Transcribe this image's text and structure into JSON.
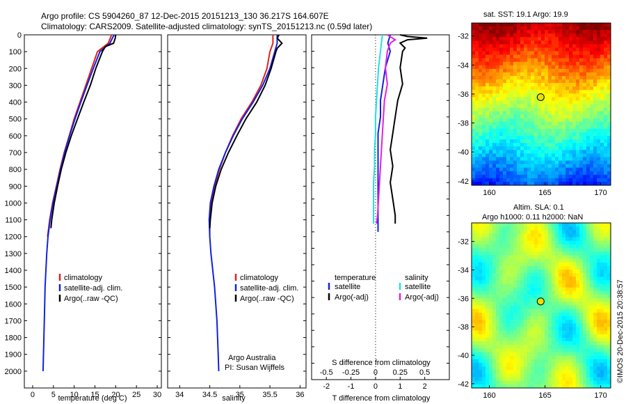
{
  "header": {
    "line1": "Argo profile: CS 5904260_87 12-Dec-2015 20151213_130 36.217S 164.607E",
    "line2": "Climatology: CARS2009. Satellite-adjusted climatology: synTS_20151213.nc (0.59d later)"
  },
  "side_stamp": "©IMOS 20-Dec-2015 20:38:57",
  "colors": {
    "climatology": "#e02020",
    "satellite": "#1020e0",
    "argo": "#000000",
    "sal_sat": "#20e0e0",
    "sal_argo": "#e020e0"
  },
  "chart_data": [
    {
      "type": "line",
      "xlabel": "temperature (deg C)",
      "ylabel": "",
      "xlim": [
        -2,
        31
      ],
      "ylim": [
        2100,
        0
      ],
      "xticks": [
        0,
        5,
        10,
        15,
        20,
        25,
        30
      ],
      "yticks": [
        0,
        100,
        200,
        300,
        400,
        500,
        600,
        700,
        800,
        900,
        1000,
        1100,
        1200,
        1300,
        1400,
        1500,
        1600,
        1700,
        1800,
        1900,
        2000
      ],
      "legend": {
        "position": "lower-center",
        "entries": [
          "climatology",
          "satellite-adj. clim.",
          "Argo(..raw -QC)"
        ]
      },
      "series": [
        {
          "name": "climatology",
          "color": "#e02020",
          "depth": [
            0,
            50,
            100,
            200,
            300,
            400,
            500,
            600,
            700,
            800,
            900,
            1000,
            1100,
            1200
          ],
          "values": [
            19.0,
            18.2,
            15.6,
            14.2,
            12.8,
            11.4,
            10.0,
            8.8,
            7.6,
            6.6,
            5.7,
            4.8,
            4.1,
            3.6
          ]
        },
        {
          "name": "satellite-adj. clim.",
          "color": "#1020e0",
          "depth": [
            0,
            50,
            100,
            200,
            300,
            400,
            500,
            600,
            700,
            800,
            900,
            1000,
            1100,
            1200,
            1300,
            1400,
            1500,
            1600,
            1700,
            1800,
            1900,
            2000
          ],
          "values": [
            19.6,
            18.6,
            16.2,
            14.6,
            13.1,
            11.6,
            10.2,
            8.9,
            7.7,
            6.7,
            5.8,
            4.9,
            4.2,
            3.7,
            3.4,
            3.2,
            3.0,
            2.9,
            2.8,
            2.7,
            2.6,
            2.5
          ]
        },
        {
          "name": "Argo(..raw -QC)",
          "color": "#000000",
          "depth": [
            0,
            20,
            50,
            70,
            100,
            200,
            300,
            400,
            500,
            600,
            700,
            800,
            900,
            1000,
            1100,
            1150
          ],
          "values": [
            20.0,
            19.9,
            19.5,
            17.5,
            16.8,
            15.2,
            13.9,
            12.3,
            10.8,
            9.3,
            8.0,
            6.9,
            6.0,
            5.2,
            4.6,
            4.4
          ]
        }
      ]
    },
    {
      "type": "line",
      "xlabel": "salinity",
      "ylabel": "",
      "xlim": [
        33.8,
        36.1
      ],
      "ylim": [
        2100,
        0
      ],
      "xticks": [
        34,
        34.5,
        35,
        35.5,
        36
      ],
      "legend": {
        "position": "lower-center",
        "entries": [
          "climatology",
          "satellite-adj. clim.",
          "Argo(..raw -QC)"
        ]
      },
      "annotation": [
        "Argo Australia",
        "PI: Susan Wijffels"
      ],
      "series": [
        {
          "name": "climatology",
          "color": "#e02020",
          "depth": [
            0,
            50,
            100,
            200,
            300,
            400,
            500,
            600,
            700,
            800,
            900,
            1000,
            1100,
            1200
          ],
          "values": [
            35.55,
            35.55,
            35.5,
            35.45,
            35.35,
            35.2,
            35.02,
            34.88,
            34.76,
            34.66,
            34.58,
            34.52,
            34.5,
            34.5
          ]
        },
        {
          "name": "satellite-adj. clim.",
          "color": "#1020e0",
          "depth": [
            0,
            50,
            100,
            200,
            300,
            400,
            500,
            600,
            700,
            800,
            900,
            1000,
            1100,
            1200,
            1300,
            1400,
            1500,
            1600,
            1700,
            1800,
            1900,
            2000
          ],
          "values": [
            35.62,
            35.62,
            35.58,
            35.5,
            35.38,
            35.22,
            35.04,
            34.89,
            34.76,
            34.65,
            34.57,
            34.51,
            34.49,
            34.5,
            34.52,
            34.55,
            34.58,
            34.6,
            34.62,
            34.63,
            34.64,
            34.65
          ]
        },
        {
          "name": "Argo(..raw -QC)",
          "color": "#000000",
          "depth": [
            0,
            20,
            50,
            80,
            100,
            200,
            300,
            400,
            500,
            600,
            700,
            800,
            900,
            1000,
            1100,
            1150
          ],
          "values": [
            35.65,
            35.62,
            35.7,
            35.62,
            35.6,
            35.52,
            35.42,
            35.28,
            35.1,
            34.95,
            34.81,
            34.69,
            34.6,
            34.54,
            34.51,
            34.5
          ]
        }
      ]
    },
    {
      "type": "line",
      "xlabel": "T difference from climatology",
      "top_label": "S difference from climatology",
      "xlim": [
        -2.6,
        3.0
      ],
      "ylim": [
        2100,
        0
      ],
      "xticks": [
        -2,
        -1,
        0,
        1,
        2
      ],
      "top_xticks": [
        -0.5,
        -0.25,
        0,
        0.25,
        0.5
      ],
      "zero_line": "dotted",
      "legend": {
        "position": "lower-center",
        "titles": [
          "temperature",
          "salinity"
        ],
        "entries": [
          "satellite",
          "Argo(-adj)",
          "satellite",
          "Argo(-adj)"
        ]
      },
      "series": [
        {
          "name": "satellite",
          "group": "temperature",
          "color": "#1020e0",
          "depth": [
            0,
            50,
            100,
            200,
            300,
            400,
            500,
            600,
            700,
            800,
            900,
            1000,
            1100,
            1200
          ],
          "values": [
            0.6,
            0.5,
            0.6,
            0.4,
            0.3,
            0.2,
            0.2,
            0.1,
            0.1,
            0.1,
            0.1,
            0.1,
            0.1,
            0.1
          ]
        },
        {
          "name": "Argo(-adj)",
          "group": "temperature",
          "color": "#000000",
          "depth": [
            0,
            10,
            20,
            30,
            50,
            80,
            100,
            200,
            300,
            400,
            500,
            600,
            700,
            800,
            900,
            1000,
            1100,
            1150
          ],
          "values": [
            1.0,
            1.3,
            2.1,
            1.3,
            1.0,
            1.2,
            1.1,
            1.0,
            1.1,
            0.9,
            0.8,
            0.7,
            0.6,
            0.7,
            0.6,
            0.7,
            0.8,
            0.8
          ]
        },
        {
          "name": "satellite",
          "group": "salinity",
          "color": "#20e0e0",
          "depth": [
            0,
            100,
            200,
            300,
            400,
            500,
            600,
            700,
            800,
            900,
            1000,
            1100,
            1150
          ],
          "values": [
            0.07,
            0.05,
            0.03,
            0.02,
            0.01,
            0.0,
            0.0,
            -0.01,
            -0.01,
            -0.02,
            -0.02,
            -0.02,
            -0.02
          ]
        },
        {
          "name": "Argo(-adj)",
          "group": "salinity",
          "color": "#e020e0",
          "depth": [
            0,
            30,
            50,
            100,
            200,
            300,
            400,
            500,
            600,
            700,
            800,
            900,
            1000,
            1100,
            1150
          ],
          "values": [
            0.12,
            0.2,
            0.15,
            0.12,
            0.1,
            0.12,
            0.09,
            0.08,
            0.07,
            0.06,
            0.05,
            0.04,
            0.03,
            0.02,
            0.01
          ]
        }
      ]
    },
    {
      "type": "heatmap",
      "title": "sat. SST: 19.1  Argo: 19.9",
      "xlim": [
        158.4,
        170.9
      ],
      "ylim": [
        -42.3,
        -31.1
      ],
      "xticks": [
        160,
        165,
        170
      ],
      "yticks": [
        -32,
        -34,
        -36,
        -38,
        -40,
        -42
      ],
      "colormap": "jet",
      "marker": {
        "lon": 164.607,
        "lat": -36.217
      }
    },
    {
      "type": "heatmap",
      "title": "Altim. SLA: 0.1",
      "subtitle": "Argo h1000: 0.11 h2000: NaN",
      "xlim": [
        158.4,
        170.9
      ],
      "ylim": [
        -42.3,
        -30.7
      ],
      "xticks": [
        160,
        165,
        170
      ],
      "yticks": [
        -32,
        -34,
        -36,
        -38,
        -40,
        -42
      ],
      "colormap": "jet",
      "marker": {
        "lon": 164.607,
        "lat": -36.217
      }
    }
  ]
}
